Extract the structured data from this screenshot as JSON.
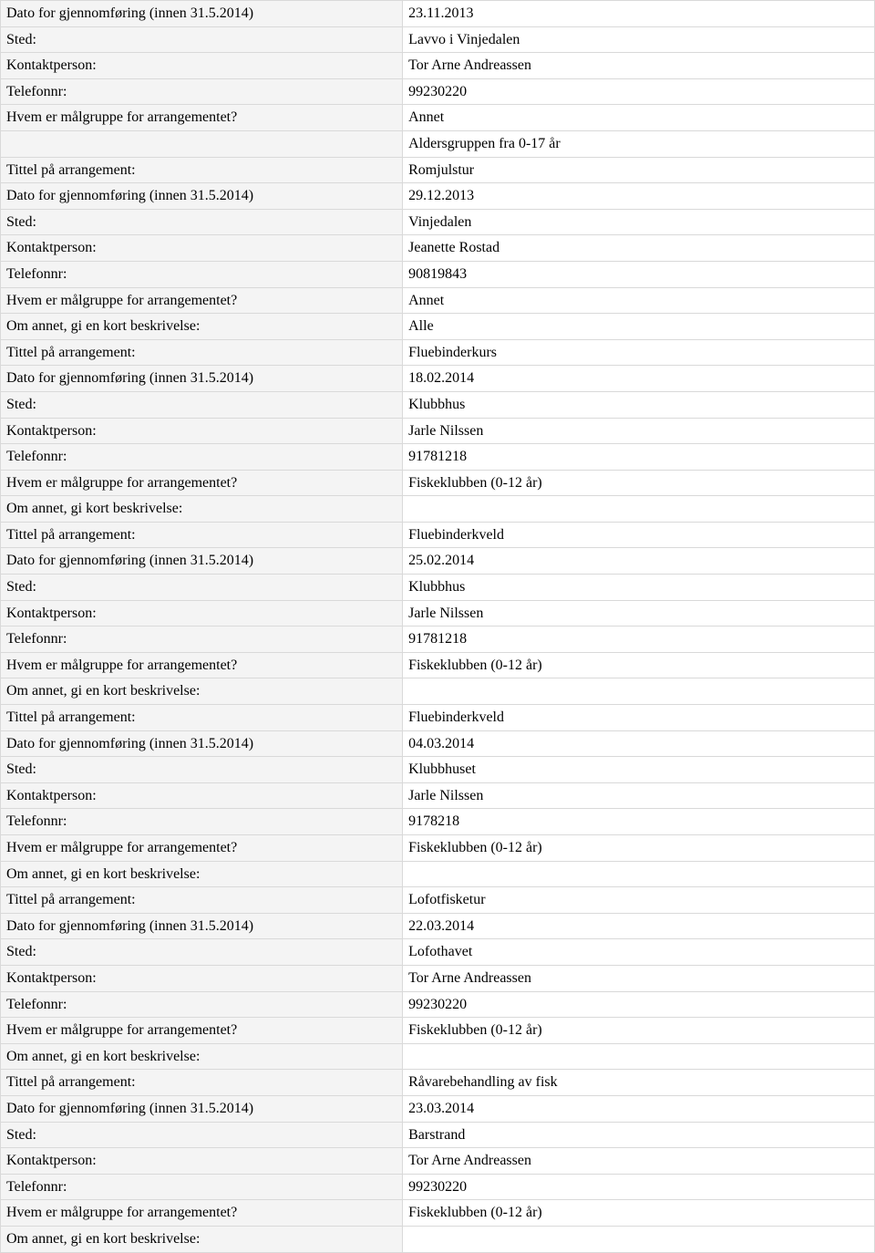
{
  "colors": {
    "label_bg": "#f4f4f4",
    "value_bg": "#ffffff",
    "border": "#d9d9d9",
    "text": "#000000"
  },
  "rows": [
    {
      "label": "Dato for gjennomføring (innen 31.5.2014)",
      "value": "23.11.2013"
    },
    {
      "label": "Sted:",
      "value": "Lavvo i Vinjedalen"
    },
    {
      "label": "Kontaktperson:",
      "value": "Tor Arne Andreassen"
    },
    {
      "label": "Telefonnr:",
      "value": "99230220"
    },
    {
      "label": "Hvem er målgruppe for arrangementet?",
      "value": "Annet"
    },
    {
      "label": "",
      "value": "Aldersgruppen fra 0-17 år"
    },
    {
      "label": "Tittel på arrangement:",
      "value": "Romjulstur"
    },
    {
      "label": "Dato for gjennomføring (innen 31.5.2014)",
      "value": "29.12.2013"
    },
    {
      "label": "Sted:",
      "value": "Vinjedalen"
    },
    {
      "label": "Kontaktperson:",
      "value": "Jeanette Rostad"
    },
    {
      "label": "Telefonnr:",
      "value": "90819843"
    },
    {
      "label": "Hvem er målgruppe for arrangementet?",
      "value": "Annet"
    },
    {
      "label": "Om annet, gi en kort beskrivelse:",
      "value": "Alle"
    },
    {
      "label": "Tittel på arrangement:",
      "value": "Fluebinderkurs"
    },
    {
      "label": "Dato for gjennomføring (innen 31.5.2014)",
      "value": "18.02.2014"
    },
    {
      "label": "Sted:",
      "value": "Klubbhus"
    },
    {
      "label": "Kontaktperson:",
      "value": "Jarle Nilssen"
    },
    {
      "label": "Telefonnr:",
      "value": "91781218"
    },
    {
      "label": "Hvem er målgruppe for arrangementet?",
      "value": "Fiskeklubben (0-12 år)"
    },
    {
      "label": "Om annet, gi kort beskrivelse:",
      "value": ""
    },
    {
      "label": "Tittel på arrangement:",
      "value": "Fluebinderkveld"
    },
    {
      "label": "Dato for gjennomføring (innen 31.5.2014)",
      "value": "25.02.2014"
    },
    {
      "label": "Sted:",
      "value": "Klubbhus"
    },
    {
      "label": "Kontaktperson:",
      "value": "Jarle Nilssen"
    },
    {
      "label": "Telefonnr:",
      "value": "91781218"
    },
    {
      "label": "Hvem er målgruppe for arrangementet?",
      "value": "Fiskeklubben (0-12 år)"
    },
    {
      "label": "Om annet, gi en kort beskrivelse:",
      "value": ""
    },
    {
      "label": "Tittel på arrangement:",
      "value": "Fluebinderkveld"
    },
    {
      "label": "Dato for gjennomføring (innen 31.5.2014)",
      "value": "04.03.2014"
    },
    {
      "label": "Sted:",
      "value": "Klubbhuset"
    },
    {
      "label": "Kontaktperson:",
      "value": "Jarle Nilssen"
    },
    {
      "label": "Telefonnr:",
      "value": "9178218"
    },
    {
      "label": "Hvem er målgruppe for arrangementet?",
      "value": "Fiskeklubben (0-12 år)"
    },
    {
      "label": "Om annet, gi en kort beskrivelse:",
      "value": ""
    },
    {
      "label": "Tittel på arrangement:",
      "value": "Lofotfisketur"
    },
    {
      "label": "Dato for gjennomføring (innen 31.5.2014)",
      "value": "22.03.2014"
    },
    {
      "label": "Sted:",
      "value": "Lofothavet"
    },
    {
      "label": "Kontaktperson:",
      "value": "Tor Arne Andreassen"
    },
    {
      "label": "Telefonnr:",
      "value": "99230220"
    },
    {
      "label": "Hvem er målgruppe for arrangementet?",
      "value": "Fiskeklubben (0-12 år)"
    },
    {
      "label": "Om annet, gi en kort beskrivelse:",
      "value": ""
    },
    {
      "label": "Tittel på arrangement:",
      "value": "Råvarebehandling av fisk"
    },
    {
      "label": "Dato for gjennomføring (innen 31.5.2014)",
      "value": "23.03.2014"
    },
    {
      "label": "Sted:",
      "value": "Barstrand"
    },
    {
      "label": "Kontaktperson:",
      "value": "Tor Arne Andreassen"
    },
    {
      "label": "Telefonnr:",
      "value": "99230220"
    },
    {
      "label": "Hvem er målgruppe for arrangementet?",
      "value": "Fiskeklubben (0-12 år)"
    },
    {
      "label": "Om annet, gi en kort beskrivelse:",
      "value": ""
    }
  ]
}
